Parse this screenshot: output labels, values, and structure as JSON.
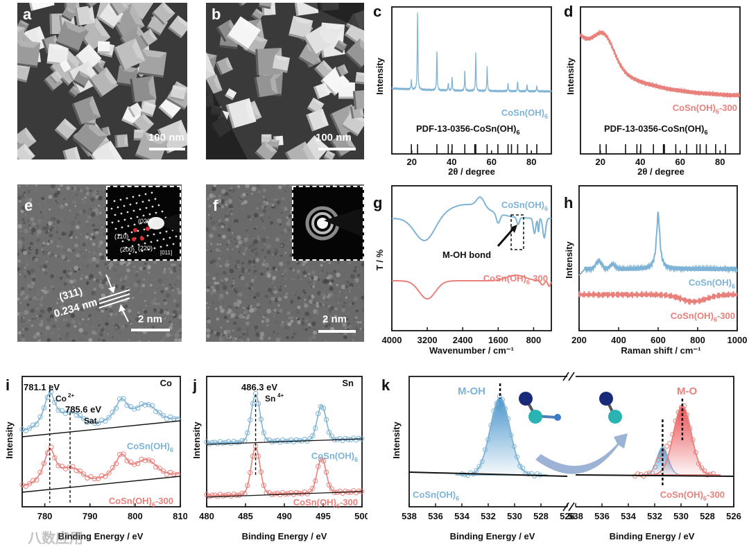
{
  "panels": {
    "a": {
      "label": "a",
      "scale": "100 nm"
    },
    "b": {
      "label": "b",
      "scale": "100 nm"
    },
    "e": {
      "label": "e",
      "scale": "2 nm",
      "plane": "(311)",
      "spacing": "0.234 nm",
      "saed": [
        "(020)",
        "(110)",
        "(200)",
        "(220)",
        "[011]"
      ]
    },
    "f": {
      "label": "f",
      "scale": "2 nm"
    }
  },
  "chart_data": [
    {
      "id": "c",
      "type": "line",
      "label": "c",
      "ylabel": "Intensity",
      "xlabel": "2θ / degree",
      "xlim": [
        10,
        90
      ],
      "ticks": [
        20,
        40,
        60,
        80
      ],
      "tick_labels": [
        "20",
        "40",
        "60",
        "80"
      ],
      "series_name": "CoSn(OH)6",
      "reference": "PDF-13-0356-CoSn(OH)6",
      "peaks_2theta": [
        19.8,
        22.9,
        32.6,
        38.3,
        40.2,
        46.6,
        52.1,
        57.8,
        68.3,
        73.1,
        77.8,
        82.7
      ],
      "peak_rel_intensity": [
        0.12,
        1.0,
        0.5,
        0.1,
        0.18,
        0.25,
        0.5,
        0.32,
        0.1,
        0.12,
        0.08,
        0.07
      ],
      "ref_lines": [
        19.8,
        22.9,
        32.6,
        38.3,
        40.2,
        46.6,
        51.6,
        52.1,
        57.8,
        63.2,
        68.3,
        70.0,
        73.1,
        77.8,
        82.7
      ]
    },
    {
      "id": "d",
      "type": "line",
      "label": "d",
      "ylabel": "Intensity",
      "xlabel": "2θ / degree",
      "xlim": [
        10,
        90
      ],
      "ticks": [
        20,
        40,
        60,
        80
      ],
      "tick_labels": [
        "20",
        "40",
        "60",
        "80"
      ],
      "series_name": "CoSn(OH)6-300",
      "reference": "PDF-13-0356-CoSn(OH)6",
      "shape": "broad amorphous hump near 22 degrees on decaying background",
      "ref_lines": [
        19.8,
        22.9,
        32.6,
        38.3,
        40.2,
        46.6,
        51.6,
        52.1,
        57.8,
        63.2,
        68.3,
        70.0,
        73.1,
        77.8,
        82.7
      ]
    },
    {
      "id": "g",
      "type": "line",
      "label": "g",
      "ylabel": "T / %",
      "xlabel": "Wavenumber / cm⁻¹",
      "xlim": [
        4000,
        400
      ],
      "ticks": [
        4000,
        3200,
        2400,
        1600,
        800
      ],
      "tick_labels": [
        "4000",
        "3200",
        "2400",
        "1600",
        "800"
      ],
      "series": [
        {
          "name": "CoSn(OH)6"
        },
        {
          "name": "CoSn(OH)6-300"
        }
      ],
      "annotation": "M-OH bond"
    },
    {
      "id": "h",
      "type": "line",
      "label": "h",
      "ylabel": "Intensity",
      "xlabel": "Raman shift / cm⁻¹",
      "xlim": [
        200,
        1000
      ],
      "ticks": [
        200,
        400,
        600,
        800,
        1000
      ],
      "tick_labels": [
        "200",
        "400",
        "600",
        "800",
        "1000"
      ],
      "series": [
        {
          "name": "CoSn(OH)6",
          "main_peak": 600
        },
        {
          "name": "CoSn(OH)6-300"
        }
      ]
    },
    {
      "id": "i",
      "type": "scatter",
      "label": "i",
      "element": "Co",
      "ylabel": "Intensity",
      "xlabel": "Binding Energy / eV",
      "xlim": [
        775,
        810
      ],
      "ticks": [
        780,
        790,
        800,
        810
      ],
      "tick_labels": [
        "780",
        "790",
        "800",
        "810"
      ],
      "annotations": [
        "781.1 eV",
        "Co2+",
        "785.6 eV",
        "Sat."
      ],
      "series": [
        {
          "name": "CoSn(OH)6"
        },
        {
          "name": "CoSn(OH)6-300"
        }
      ]
    },
    {
      "id": "j",
      "type": "scatter",
      "label": "j",
      "element": "Sn",
      "ylabel": "Intensity",
      "xlabel": "Binding Energy / eV",
      "xlim": [
        480,
        500
      ],
      "ticks": [
        480,
        485,
        490,
        495,
        500
      ],
      "tick_labels": [
        "480",
        "485",
        "490",
        "495",
        "500"
      ],
      "annotations": [
        "486.3 eV",
        "Sn4+"
      ],
      "series": [
        {
          "name": "CoSn(OH)6"
        },
        {
          "name": "CoSn(OH)6-300"
        }
      ]
    },
    {
      "id": "k",
      "type": "scatter",
      "label": "k",
      "ylabel": "Intensity",
      "xlabel": "Binding Energy / eV",
      "xlim": [
        538,
        526
      ],
      "tick_labels": [
        "538",
        "536",
        "534",
        "532",
        "530",
        "528",
        "526"
      ],
      "peaks": [
        {
          "name": "M-OH",
          "center": 531.1
        },
        {
          "name": "M-O",
          "center": 529.9
        }
      ],
      "series": [
        {
          "name": "CoSn(OH)6"
        },
        {
          "name": "CoSn(OH)6-300"
        }
      ]
    }
  ],
  "text": {
    "cosnoh6": "CoSn(OH)",
    "sub6": "6",
    "suffix300": "-300",
    "pdf_prefix": "PDF-13-0356-CoSn(OH)",
    "watermark": "八数应用"
  },
  "colors": {
    "blue": "#7fb3d5",
    "red": "#e8817c",
    "blue_fill": "#3f8fc9",
    "red_fill": "#e8454a"
  }
}
